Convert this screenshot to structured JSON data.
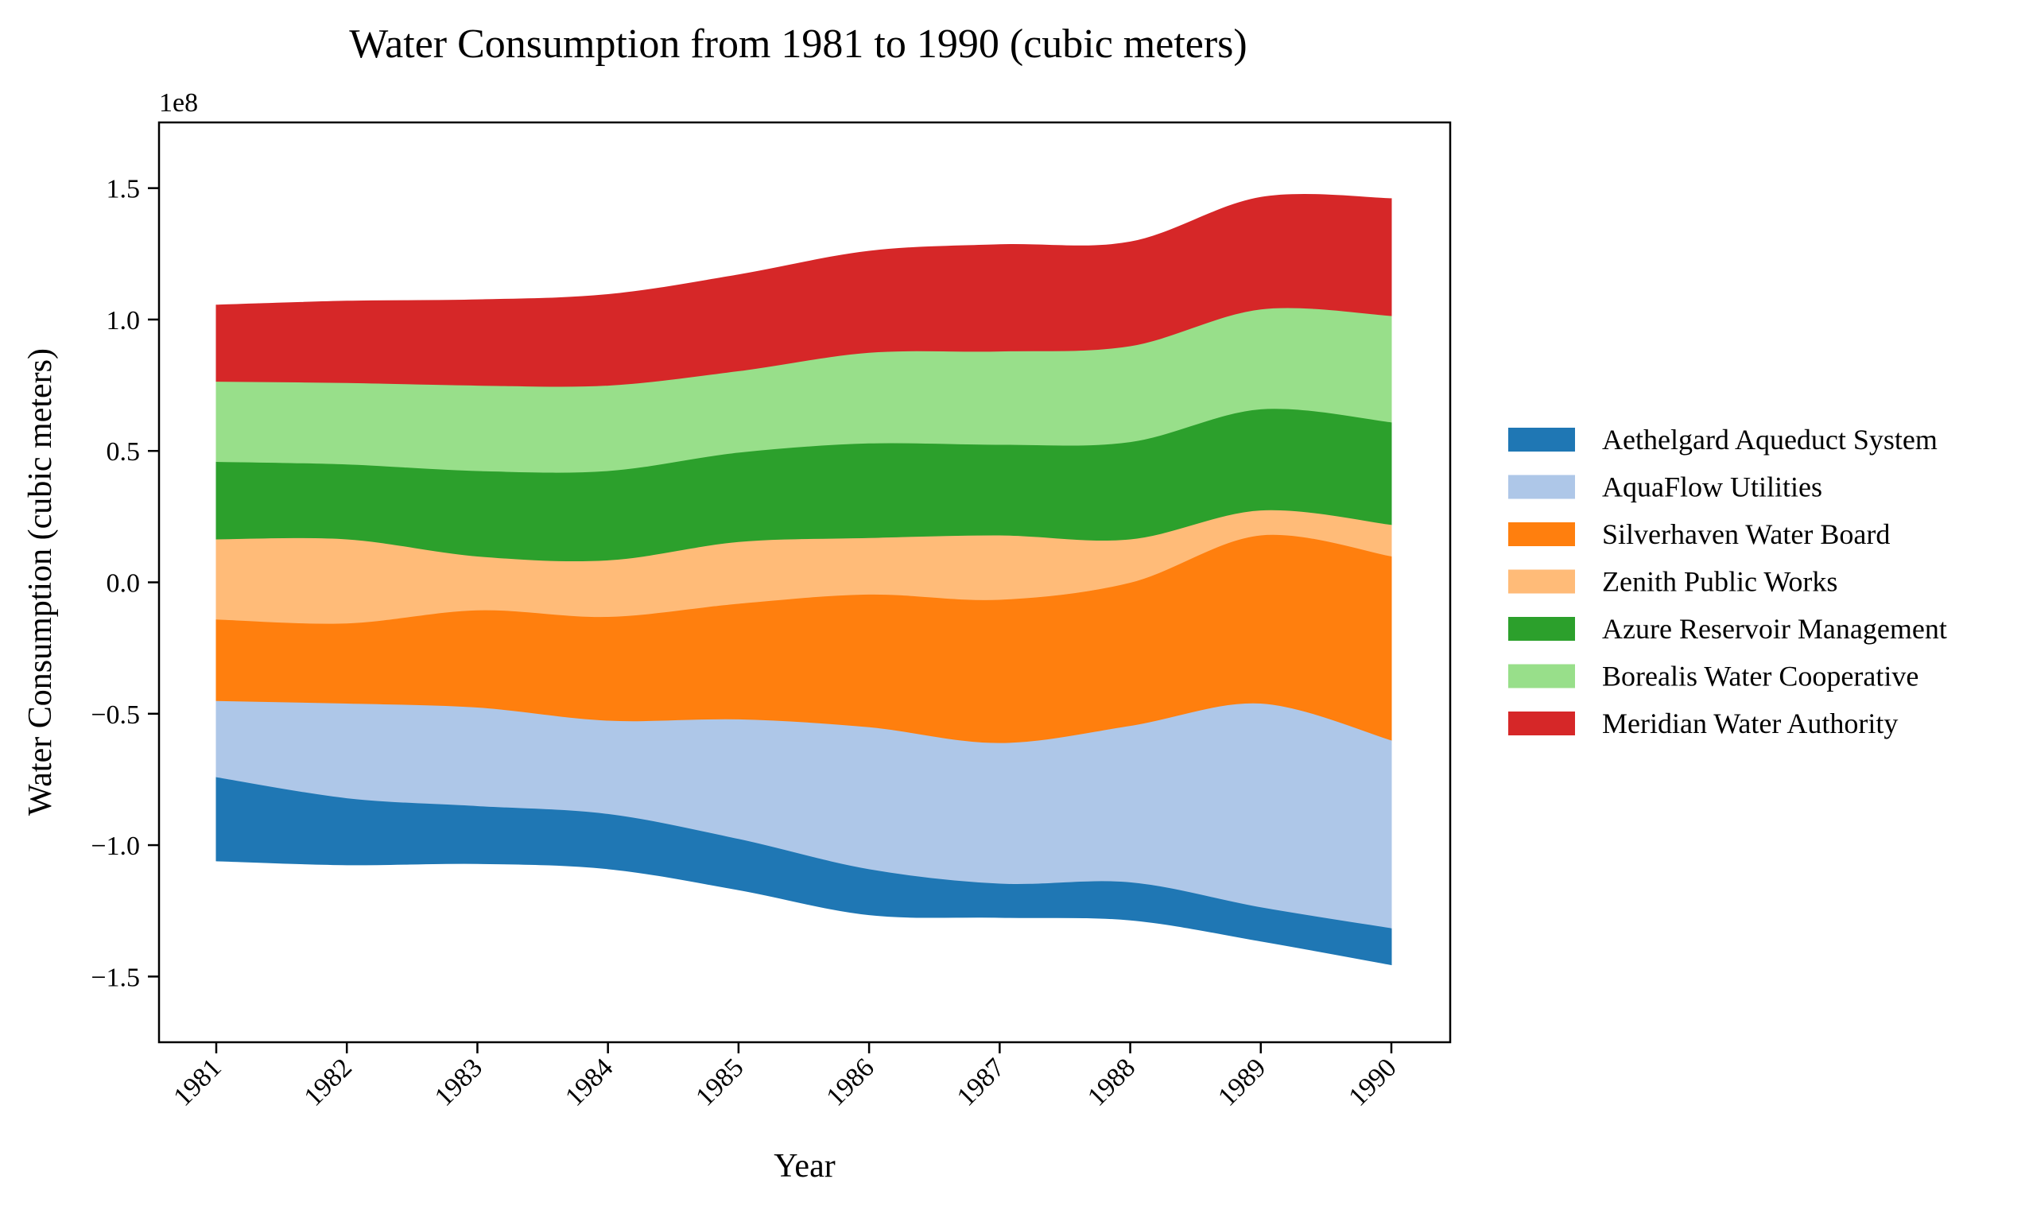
{
  "chart_data": {
    "type": "area",
    "subtype": "streamgraph",
    "title": "Water Consumption from 1981 to 1990 (cubic meters)",
    "xlabel": "Year",
    "ylabel": "Water Consumption (cubic meters)",
    "y_offset_label": "1e8",
    "y_scale": 100000000,
    "categories": [
      "1981",
      "1982",
      "1983",
      "1984",
      "1985",
      "1986",
      "1987",
      "1988",
      "1989",
      "1990"
    ],
    "ylim": [
      -1.75,
      1.75
    ],
    "yticks": [
      -1.5,
      -1.0,
      -0.5,
      0.0,
      0.5,
      1.0,
      1.5
    ],
    "ytick_labels": [
      "−1.5",
      "−1.0",
      "−0.5",
      "0.0",
      "0.5",
      "1.0",
      "1.5"
    ],
    "baseline": [
      -1.06,
      -1.075,
      -1.07,
      -1.09,
      -1.17,
      -1.265,
      -1.275,
      -1.285,
      -1.365,
      -1.455
    ],
    "series": [
      {
        "name": "Aethelgard Aqueduct System",
        "color": "#1f77b4",
        "values": [
          0.32,
          0.255,
          0.22,
          0.21,
          0.195,
          0.175,
          0.13,
          0.145,
          0.13,
          0.14
        ]
      },
      {
        "name": "AquaFlow Utilities",
        "color": "#aec7e8",
        "values": [
          0.29,
          0.36,
          0.375,
          0.355,
          0.455,
          0.54,
          0.535,
          0.595,
          0.775,
          0.715
        ]
      },
      {
        "name": "Silverhaven Water Board",
        "color": "#ff7f0e",
        "values": [
          0.31,
          0.305,
          0.37,
          0.395,
          0.44,
          0.505,
          0.545,
          0.545,
          0.64,
          0.7
        ]
      },
      {
        "name": "Zenith Public Works",
        "color": "#ffbb78",
        "values": [
          0.305,
          0.32,
          0.205,
          0.215,
          0.235,
          0.215,
          0.245,
          0.165,
          0.095,
          0.12
        ]
      },
      {
        "name": "Azure Reservoir Management",
        "color": "#2ca02c",
        "values": [
          0.295,
          0.285,
          0.325,
          0.34,
          0.34,
          0.36,
          0.345,
          0.37,
          0.385,
          0.39
        ]
      },
      {
        "name": "Borealis Water Cooperative",
        "color": "#98df8a",
        "values": [
          0.305,
          0.31,
          0.325,
          0.325,
          0.31,
          0.345,
          0.355,
          0.365,
          0.38,
          0.405
        ]
      },
      {
        "name": "Meridian Water Authority",
        "color": "#d62728",
        "values": [
          0.29,
          0.31,
          0.325,
          0.345,
          0.365,
          0.385,
          0.405,
          0.395,
          0.425,
          0.445
        ]
      }
    ],
    "grid": false,
    "legend_position": "center-right"
  }
}
